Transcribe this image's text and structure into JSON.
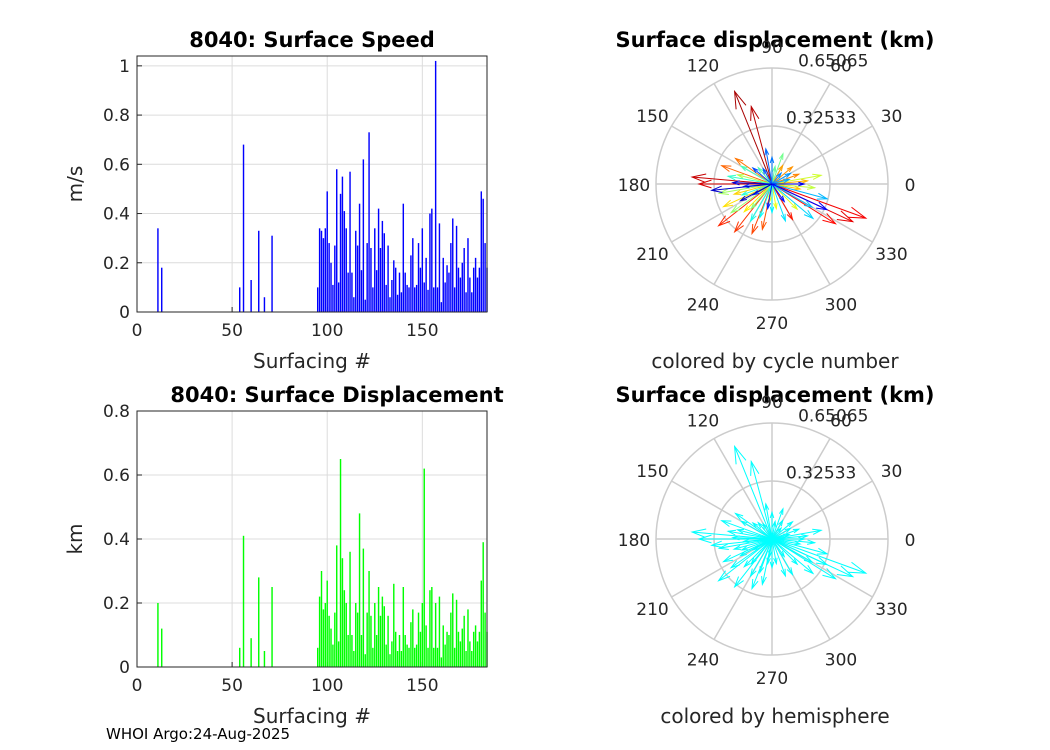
{
  "footer": "WHOI Argo:24-Aug-2025",
  "chart_data": [
    {
      "type": "bar",
      "title": "8040: Surface Speed",
      "xlabel": "Surfacing #",
      "ylabel": "m/s",
      "xlim": [
        0,
        184
      ],
      "ylim": [
        0,
        1.04
      ],
      "xticks": [
        "0",
        "50",
        "100",
        "150"
      ],
      "yticks": [
        "0",
        "0.2",
        "0.4",
        "0.6",
        "0.8",
        "1"
      ],
      "color": "#0000ff",
      "x": [
        11,
        13,
        54,
        56,
        60,
        64,
        67,
        71,
        95,
        96,
        97,
        98,
        99,
        100,
        101,
        102,
        103,
        104,
        105,
        106,
        107,
        108,
        109,
        110,
        111,
        112,
        113,
        114,
        115,
        116,
        117,
        118,
        119,
        120,
        121,
        122,
        123,
        124,
        125,
        126,
        127,
        128,
        129,
        130,
        131,
        132,
        133,
        134,
        135,
        136,
        137,
        138,
        139,
        140,
        141,
        142,
        143,
        144,
        145,
        146,
        147,
        148,
        149,
        150,
        151,
        152,
        153,
        154,
        155,
        156,
        157,
        158,
        159,
        160,
        161,
        162,
        163,
        164,
        165,
        166,
        167,
        168,
        169,
        170,
        171,
        172,
        173,
        174,
        175,
        176,
        177,
        178,
        179,
        180,
        181,
        182,
        183,
        184
      ],
      "values": [
        0.34,
        0.18,
        0.1,
        0.68,
        0.13,
        0.33,
        0.06,
        0.31,
        0.1,
        0.34,
        0.33,
        0.3,
        0.34,
        0.49,
        0.28,
        0.2,
        0.11,
        0.27,
        0.58,
        0.12,
        0.48,
        0.55,
        0.41,
        0.34,
        0.16,
        0.57,
        0.16,
        0.06,
        0.33,
        0.27,
        0.44,
        0.17,
        0.62,
        0.05,
        0.28,
        0.73,
        0.26,
        0.1,
        0.34,
        0.17,
        0.42,
        0.26,
        0.37,
        0.32,
        0.11,
        0.27,
        0.06,
        0.13,
        0.21,
        0.18,
        0.07,
        0.16,
        0.08,
        0.44,
        0.16,
        0.11,
        0.1,
        0.23,
        0.3,
        0.1,
        0.11,
        0.28,
        0.18,
        0.34,
        0.12,
        0.22,
        0.09,
        0.4,
        0.42,
        0.1,
        1.02,
        0.1,
        0.36,
        0.04,
        0.22,
        0.12,
        0.19,
        0.16,
        0.28,
        0.38,
        0.1,
        0.35,
        0.18,
        0.14,
        0.2,
        0.26,
        0.08,
        0.3,
        0.14,
        0.08,
        0.18,
        0.22,
        0.14,
        0.18,
        0.49,
        0.46,
        0.28,
        0.18
      ]
    },
    {
      "type": "polar-quiver",
      "title": "Surface displacement (km)",
      "caption": "colored by cycle number",
      "rmax": 0.65065,
      "rlabels": [
        "0.32533",
        "0.65065"
      ],
      "angle_labels": [
        "0",
        "30",
        "60",
        "90",
        "120",
        "150",
        "180",
        "210",
        "240",
        "270",
        "300",
        "330"
      ],
      "coloring": "cycle",
      "vectors": [
        [
          112,
          0.56
        ],
        [
          105,
          0.45
        ],
        [
          175,
          0.45
        ],
        [
          180,
          0.41
        ],
        [
          335,
          0.5
        ],
        [
          340,
          0.56
        ],
        [
          328,
          0.42
        ],
        [
          300,
          0.23
        ],
        [
          218,
          0.38
        ],
        [
          232,
          0.34
        ],
        [
          248,
          0.3
        ],
        [
          258,
          0.26
        ],
        [
          160,
          0.3
        ],
        [
          145,
          0.25
        ],
        [
          20,
          0.16
        ],
        [
          40,
          0.15
        ],
        [
          60,
          0.12
        ],
        [
          5,
          0.2
        ],
        [
          350,
          0.16
        ],
        [
          195,
          0.22
        ],
        [
          205,
          0.3
        ],
        [
          225,
          0.22
        ],
        [
          262,
          0.1
        ],
        [
          280,
          0.14
        ],
        [
          315,
          0.2
        ],
        [
          10,
          0.28
        ],
        [
          355,
          0.24
        ],
        [
          165,
          0.2
        ],
        [
          190,
          0.3
        ],
        [
          215,
          0.28
        ],
        [
          230,
          0.18
        ],
        [
          70,
          0.18
        ],
        [
          80,
          0.1
        ],
        [
          130,
          0.12
        ],
        [
          150,
          0.2
        ],
        [
          170,
          0.25
        ],
        [
          200,
          0.18
        ],
        [
          240,
          0.24
        ],
        [
          250,
          0.2
        ],
        [
          270,
          0.16
        ],
        [
          290,
          0.22
        ],
        [
          320,
          0.3
        ],
        [
          330,
          0.26
        ],
        [
          345,
          0.32
        ],
        [
          15,
          0.1
        ],
        [
          30,
          0.12
        ],
        [
          50,
          0.08
        ],
        [
          90,
          0.15
        ],
        [
          100,
          0.2
        ],
        [
          120,
          0.1
        ],
        [
          140,
          0.14
        ],
        [
          185,
          0.16
        ],
        [
          210,
          0.12
        ],
        [
          260,
          0.14
        ],
        [
          305,
          0.12
        ],
        [
          335,
          0.34
        ],
        [
          360,
          0.18
        ],
        [
          178,
          0.22
        ],
        [
          186,
          0.34
        ],
        [
          208,
          0.2
        ]
      ]
    },
    {
      "type": "bar",
      "title": "8040: Surface Displacement",
      "xlabel": "Surfacing #",
      "ylabel": "km",
      "xlim": [
        0,
        184
      ],
      "ylim": [
        0,
        0.8
      ],
      "xticks": [
        "0",
        "50",
        "100",
        "150"
      ],
      "yticks": [
        "0",
        "0.2",
        "0.4",
        "0.6",
        "0.8"
      ],
      "color": "#00ff00",
      "x": [
        11,
        13,
        54,
        56,
        60,
        64,
        67,
        71,
        95,
        96,
        97,
        98,
        99,
        100,
        101,
        102,
        103,
        104,
        105,
        106,
        107,
        108,
        109,
        110,
        111,
        112,
        113,
        114,
        115,
        116,
        117,
        118,
        119,
        120,
        121,
        122,
        123,
        124,
        125,
        126,
        127,
        128,
        129,
        130,
        131,
        132,
        133,
        134,
        135,
        136,
        137,
        138,
        139,
        140,
        141,
        142,
        143,
        144,
        145,
        146,
        147,
        148,
        149,
        150,
        151,
        152,
        153,
        154,
        155,
        156,
        157,
        158,
        159,
        160,
        161,
        162,
        163,
        164,
        165,
        166,
        167,
        168,
        169,
        170,
        171,
        172,
        173,
        174,
        175,
        176,
        177,
        178,
        179,
        180,
        181,
        182,
        183,
        184
      ],
      "values": [
        0.2,
        0.12,
        0.06,
        0.41,
        0.09,
        0.28,
        0.05,
        0.25,
        0.06,
        0.22,
        0.3,
        0.18,
        0.2,
        0.27,
        0.16,
        0.12,
        0.07,
        0.17,
        0.38,
        0.08,
        0.65,
        0.34,
        0.24,
        0.2,
        0.1,
        0.36,
        0.1,
        0.05,
        0.2,
        0.17,
        0.48,
        0.1,
        0.37,
        0.04,
        0.17,
        0.3,
        0.16,
        0.06,
        0.2,
        0.1,
        0.25,
        0.16,
        0.22,
        0.19,
        0.07,
        0.16,
        0.04,
        0.08,
        0.26,
        0.11,
        0.05,
        0.1,
        0.05,
        0.25,
        0.1,
        0.07,
        0.06,
        0.14,
        0.18,
        0.06,
        0.07,
        0.17,
        0.11,
        0.2,
        0.62,
        0.13,
        0.06,
        0.24,
        0.25,
        0.06,
        0.2,
        0.06,
        0.22,
        0.03,
        0.13,
        0.07,
        0.11,
        0.1,
        0.17,
        0.23,
        0.06,
        0.21,
        0.11,
        0.08,
        0.12,
        0.16,
        0.05,
        0.18,
        0.08,
        0.05,
        0.11,
        0.13,
        0.08,
        0.11,
        0.27,
        0.39,
        0.17,
        0.11
      ]
    },
    {
      "type": "polar-quiver",
      "title": "Surface displacement (km)",
      "caption": "colored by hemisphere",
      "rmax": 0.65065,
      "rlabels": [
        "0.32533",
        "0.65065"
      ],
      "angle_labels": [
        "0",
        "30",
        "60",
        "90",
        "120",
        "150",
        "180",
        "210",
        "240",
        "270",
        "300",
        "330"
      ],
      "coloring": "hemisphere",
      "color": "#00ffff",
      "vectors": [
        [
          112,
          0.56
        ],
        [
          105,
          0.45
        ],
        [
          175,
          0.45
        ],
        [
          180,
          0.41
        ],
        [
          335,
          0.5
        ],
        [
          340,
          0.56
        ],
        [
          328,
          0.42
        ],
        [
          300,
          0.23
        ],
        [
          218,
          0.38
        ],
        [
          232,
          0.34
        ],
        [
          248,
          0.3
        ],
        [
          258,
          0.26
        ],
        [
          160,
          0.3
        ],
        [
          145,
          0.25
        ],
        [
          20,
          0.16
        ],
        [
          40,
          0.15
        ],
        [
          60,
          0.12
        ],
        [
          5,
          0.2
        ],
        [
          350,
          0.16
        ],
        [
          195,
          0.22
        ],
        [
          205,
          0.3
        ],
        [
          225,
          0.22
        ],
        [
          262,
          0.1
        ],
        [
          280,
          0.14
        ],
        [
          315,
          0.2
        ],
        [
          10,
          0.28
        ],
        [
          355,
          0.24
        ],
        [
          165,
          0.2
        ],
        [
          190,
          0.3
        ],
        [
          215,
          0.28
        ],
        [
          230,
          0.18
        ],
        [
          70,
          0.18
        ],
        [
          80,
          0.1
        ],
        [
          130,
          0.12
        ],
        [
          150,
          0.2
        ],
        [
          170,
          0.25
        ],
        [
          200,
          0.18
        ],
        [
          240,
          0.24
        ],
        [
          250,
          0.2
        ],
        [
          270,
          0.16
        ],
        [
          290,
          0.22
        ],
        [
          320,
          0.3
        ],
        [
          330,
          0.26
        ],
        [
          345,
          0.32
        ],
        [
          15,
          0.1
        ],
        [
          30,
          0.12
        ],
        [
          50,
          0.08
        ],
        [
          90,
          0.15
        ],
        [
          100,
          0.2
        ],
        [
          120,
          0.1
        ],
        [
          140,
          0.14
        ],
        [
          185,
          0.16
        ],
        [
          210,
          0.12
        ],
        [
          260,
          0.14
        ],
        [
          305,
          0.12
        ],
        [
          335,
          0.34
        ],
        [
          360,
          0.18
        ],
        [
          178,
          0.22
        ],
        [
          186,
          0.34
        ],
        [
          208,
          0.2
        ]
      ]
    }
  ]
}
